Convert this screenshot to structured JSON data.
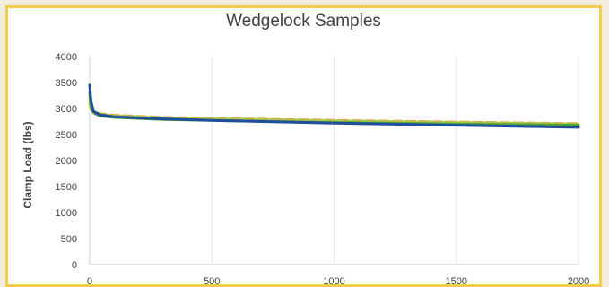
{
  "chart_data": {
    "type": "line",
    "title": "Wedgelock Samples",
    "xlabel": "",
    "ylabel": "Clamp Load (lbs)",
    "xlim": [
      0,
      2000
    ],
    "ylim": [
      0,
      4000
    ],
    "x_ticks": [
      "0",
      "500",
      "1000",
      "1500",
      "2000"
    ],
    "y_ticks": [
      "0",
      "500",
      "1000",
      "1500",
      "2000",
      "2500",
      "3000",
      "3500",
      "4000"
    ],
    "grid": "vertical",
    "legend": "none",
    "series": [
      {
        "color": "#1f4e9c",
        "dashed": false,
        "points": [
          [
            0,
            3450
          ],
          [
            5,
            3150
          ],
          [
            15,
            2950
          ],
          [
            40,
            2880
          ],
          [
            100,
            2840
          ],
          [
            300,
            2800
          ],
          [
            500,
            2770
          ],
          [
            1000,
            2720
          ],
          [
            1500,
            2680
          ],
          [
            2000,
            2640
          ]
        ]
      },
      {
        "color": "#4aa33a",
        "dashed": false,
        "points": [
          [
            0,
            3300
          ],
          [
            5,
            3050
          ],
          [
            15,
            2920
          ],
          [
            40,
            2860
          ],
          [
            100,
            2830
          ],
          [
            300,
            2790
          ],
          [
            500,
            2770
          ],
          [
            1000,
            2730
          ],
          [
            1500,
            2700
          ],
          [
            2000,
            2680
          ]
        ]
      },
      {
        "color": "#a9c94a",
        "dashed": true,
        "points": [
          [
            0,
            3200
          ],
          [
            5,
            3000
          ],
          [
            15,
            2930
          ],
          [
            40,
            2890
          ],
          [
            100,
            2860
          ],
          [
            300,
            2820
          ],
          [
            500,
            2800
          ],
          [
            1000,
            2760
          ],
          [
            1500,
            2730
          ],
          [
            2000,
            2700
          ]
        ]
      },
      {
        "color": "#e0a84a",
        "dashed": true,
        "points": [
          [
            0,
            3100
          ],
          [
            5,
            2980
          ],
          [
            15,
            2940
          ],
          [
            40,
            2900
          ],
          [
            100,
            2870
          ],
          [
            300,
            2830
          ],
          [
            500,
            2810
          ],
          [
            1000,
            2770
          ],
          [
            1500,
            2740
          ],
          [
            2000,
            2710
          ]
        ]
      }
    ]
  }
}
